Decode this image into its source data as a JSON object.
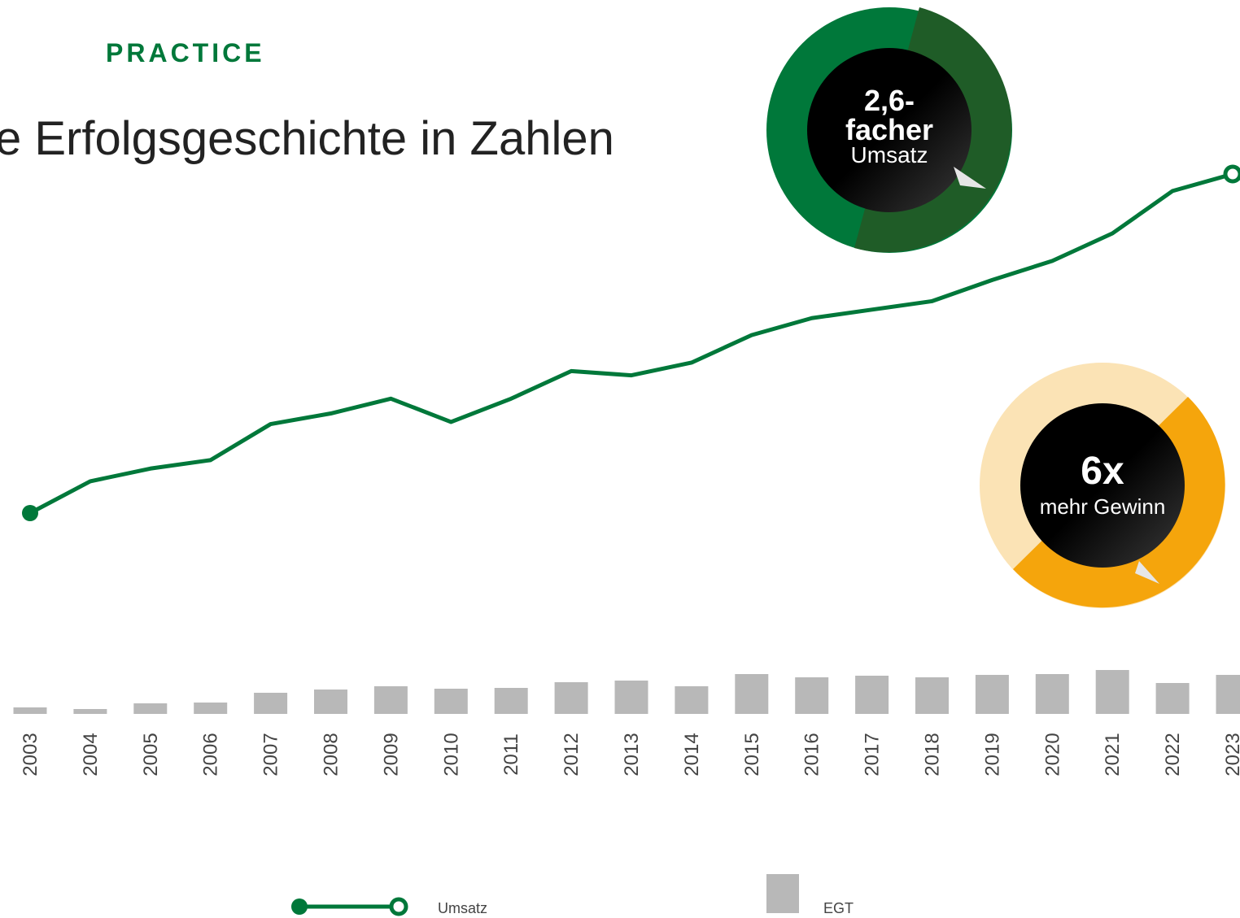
{
  "header": {
    "kicker": "PRACTICE",
    "title": "e Erfolgsgeschichte in Zahlen"
  },
  "badges": [
    {
      "value": "2,6-",
      "line2": "facher",
      "line3": "Umsatz"
    },
    {
      "value": "6x",
      "line2": "mehr Gewinn"
    }
  ],
  "chart_data": {
    "type": "line-bar",
    "categories": [
      "2003",
      "2004",
      "2005",
      "2006",
      "2007",
      "2008",
      "2009",
      "2010",
      "2011",
      "2012",
      "2013",
      "2014",
      "2015",
      "2016",
      "2017",
      "2018",
      "2019",
      "2020",
      "2021",
      "2022",
      "2023"
    ],
    "series": [
      {
        "name": "Umsatz",
        "type": "line",
        "color": "#00783a",
        "values": [
          100,
          115,
          121,
          125,
          142,
          147,
          154,
          143,
          154,
          167,
          165,
          171,
          184,
          192,
          196,
          200,
          210,
          219,
          232,
          252,
          260
        ]
      },
      {
        "name": "EGT",
        "type": "bar",
        "color": "#b8b8b8",
        "values": [
          8,
          6,
          13,
          14,
          26,
          30,
          34,
          31,
          32,
          39,
          41,
          34,
          49,
          45,
          47,
          45,
          48,
          49,
          54,
          38,
          48
        ]
      }
    ]
  }
}
